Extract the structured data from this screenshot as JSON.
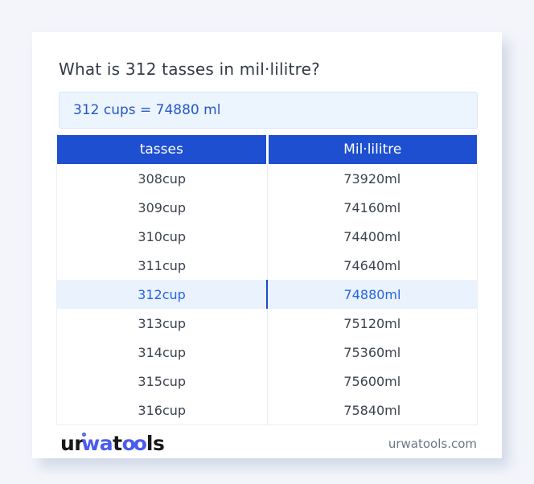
{
  "colors": {
    "page_bg": "#f3f5fa",
    "accent": "#1e4fd1",
    "highlight_bg": "#eaf2fd",
    "highlight_text": "#2563eb",
    "result_text": "#2458c5",
    "logo_blue": "#4a5cf0"
  },
  "card": {
    "title": "What is 312 tasses in mil·lilitre?",
    "result": "312 cups = 74880 ml"
  },
  "table": {
    "headers": [
      "tasses",
      "Mil·lilitre"
    ],
    "rows": [
      {
        "cup": "308cup",
        "ml": "73920ml",
        "highlight": false
      },
      {
        "cup": "309cup",
        "ml": "74160ml",
        "highlight": false
      },
      {
        "cup": "310cup",
        "ml": "74400ml",
        "highlight": false
      },
      {
        "cup": "311cup",
        "ml": "74640ml",
        "highlight": false
      },
      {
        "cup": "312cup",
        "ml": "74880ml",
        "highlight": true
      },
      {
        "cup": "313cup",
        "ml": "75120ml",
        "highlight": false
      },
      {
        "cup": "314cup",
        "ml": "75360ml",
        "highlight": false
      },
      {
        "cup": "315cup",
        "ml": "75600ml",
        "highlight": false
      },
      {
        "cup": "316cup",
        "ml": "75840ml",
        "highlight": false
      }
    ]
  },
  "footer": {
    "logo": {
      "part_ur": "ur",
      "part_wa": "wa",
      "part_t": "t",
      "part_oo": "oo",
      "part_ls": "ls"
    },
    "domain": "urwatools.com"
  }
}
